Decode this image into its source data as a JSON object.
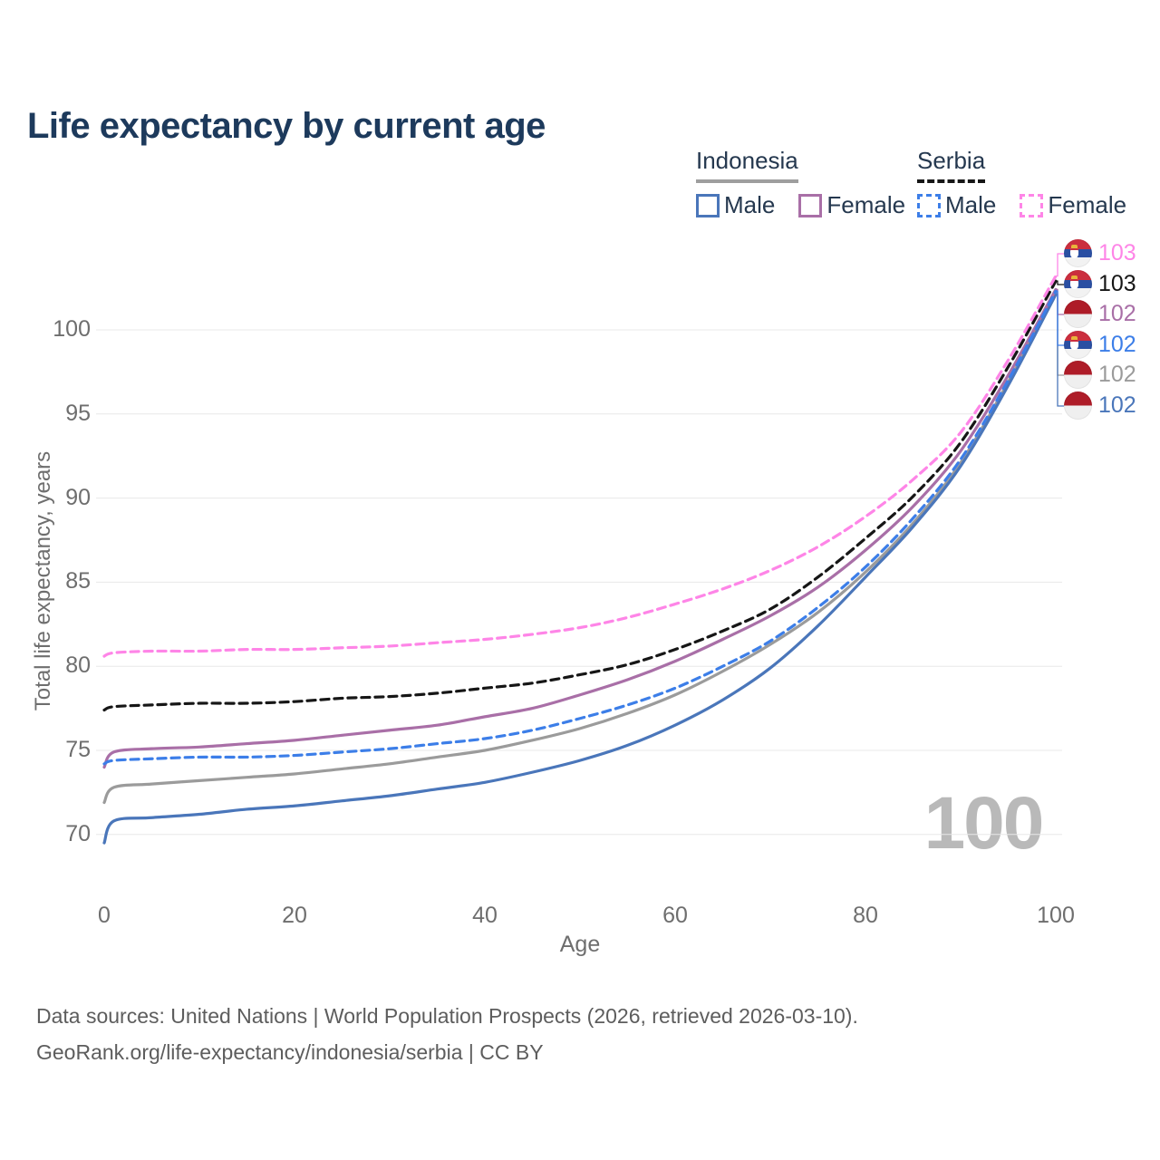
{
  "title": "Life expectancy by current age",
  "legend": {
    "groups": [
      {
        "country": "Indonesia",
        "line_style": "solid",
        "underline_color": "#9e9e9e",
        "items": [
          {
            "label": "Male",
            "color": "#4a76ba",
            "dashed": false
          },
          {
            "label": "Female",
            "color": "#a96fa7",
            "dashed": false
          }
        ]
      },
      {
        "country": "Serbia",
        "line_style": "dashed",
        "underline_color": "#161616",
        "items": [
          {
            "label": "Male",
            "color": "#3c7ee8",
            "dashed": true
          },
          {
            "label": "Female",
            "color": "#fe85e7",
            "dashed": true
          }
        ]
      }
    ]
  },
  "chart_data": {
    "type": "line",
    "title": "Life expectancy by current age",
    "xlabel": "Age",
    "ylabel": "Total life expectancy, years",
    "x_ticks": [
      0,
      20,
      40,
      60,
      80,
      100
    ],
    "y_ticks": [
      70,
      75,
      80,
      85,
      90,
      95,
      100
    ],
    "xlim": [
      0,
      100
    ],
    "ylim": [
      68.5,
      104.5
    ],
    "grid": true,
    "legend_position": "top-right",
    "hover_age_watermark": "100",
    "x": [
      0,
      1,
      5,
      10,
      15,
      20,
      25,
      30,
      35,
      40,
      45,
      50,
      55,
      60,
      65,
      70,
      75,
      80,
      85,
      90,
      95,
      100
    ],
    "series": [
      {
        "id": "indonesia-all",
        "name": "Indonesia (both sexes)",
        "country": "Indonesia",
        "sex": "Both",
        "color": "#9b9b9b",
        "dashed": false,
        "end_label": "102",
        "flag": "indonesia",
        "label_row": 4,
        "values": [
          71.9,
          72.8,
          73.0,
          73.2,
          73.4,
          73.6,
          73.9,
          74.2,
          74.6,
          75.0,
          75.6,
          76.3,
          77.2,
          78.3,
          79.7,
          81.3,
          83.2,
          85.6,
          88.5,
          92.1,
          96.9,
          102.2
        ]
      },
      {
        "id": "indonesia-male",
        "name": "Indonesia Male",
        "country": "Indonesia",
        "sex": "Male",
        "color": "#4a76ba",
        "dashed": false,
        "end_label": "102",
        "flag": "indonesia",
        "label_row": 5,
        "values": [
          69.5,
          70.8,
          71.0,
          71.2,
          71.5,
          71.7,
          72.0,
          72.3,
          72.7,
          73.1,
          73.7,
          74.4,
          75.3,
          76.5,
          78.0,
          79.9,
          82.4,
          85.3,
          88.3,
          91.9,
          96.7,
          102.1
        ]
      },
      {
        "id": "indonesia-female",
        "name": "Indonesia Female",
        "country": "Indonesia",
        "sex": "Female",
        "color": "#a96fa7",
        "dashed": false,
        "end_label": "102",
        "flag": "indonesia",
        "label_row": 2,
        "values": [
          74.0,
          74.9,
          75.1,
          75.2,
          75.4,
          75.6,
          75.9,
          76.2,
          76.5,
          77.0,
          77.5,
          78.3,
          79.2,
          80.3,
          81.6,
          83.0,
          84.7,
          86.9,
          89.5,
          92.8,
          97.3,
          102.4
        ]
      },
      {
        "id": "serbia-male",
        "name": "Serbia Male",
        "country": "Serbia",
        "sex": "Male",
        "color": "#3c7ee8",
        "dashed": true,
        "end_label": "102",
        "flag": "serbia",
        "label_row": 3,
        "values": [
          74.2,
          74.4,
          74.5,
          74.6,
          74.6,
          74.7,
          74.9,
          75.1,
          75.4,
          75.7,
          76.2,
          76.9,
          77.7,
          78.7,
          80.0,
          81.5,
          83.5,
          85.9,
          88.8,
          92.3,
          97.0,
          102.3
        ]
      },
      {
        "id": "serbia-all",
        "name": "Serbia (both sexes)",
        "country": "Serbia",
        "sex": "Both",
        "color": "#161616",
        "dashed": true,
        "end_label": "103",
        "flag": "serbia",
        "label_row": 1,
        "values": [
          77.4,
          77.6,
          77.7,
          77.8,
          77.8,
          77.9,
          78.1,
          78.2,
          78.4,
          78.7,
          79.0,
          79.5,
          80.1,
          81.0,
          82.1,
          83.4,
          85.3,
          87.6,
          90.1,
          93.3,
          97.8,
          102.9
        ]
      },
      {
        "id": "serbia-female",
        "name": "Serbia Female",
        "country": "Serbia",
        "sex": "Female",
        "color": "#fe85e7",
        "dashed": true,
        "end_label": "103",
        "flag": "serbia",
        "label_row": 0,
        "values": [
          80.6,
          80.8,
          80.9,
          80.9,
          81.0,
          81.0,
          81.1,
          81.2,
          81.4,
          81.6,
          81.9,
          82.3,
          82.9,
          83.7,
          84.6,
          85.7,
          87.1,
          88.9,
          91.1,
          93.9,
          98.2,
          103.2
        ]
      }
    ]
  },
  "footer": {
    "line1": "Data sources: United Nations | World Population Prospects (2026, retrieved 2026-03-10).",
    "line2": "GeoRank.org/life-expectancy/indonesia/serbia | CC BY"
  }
}
